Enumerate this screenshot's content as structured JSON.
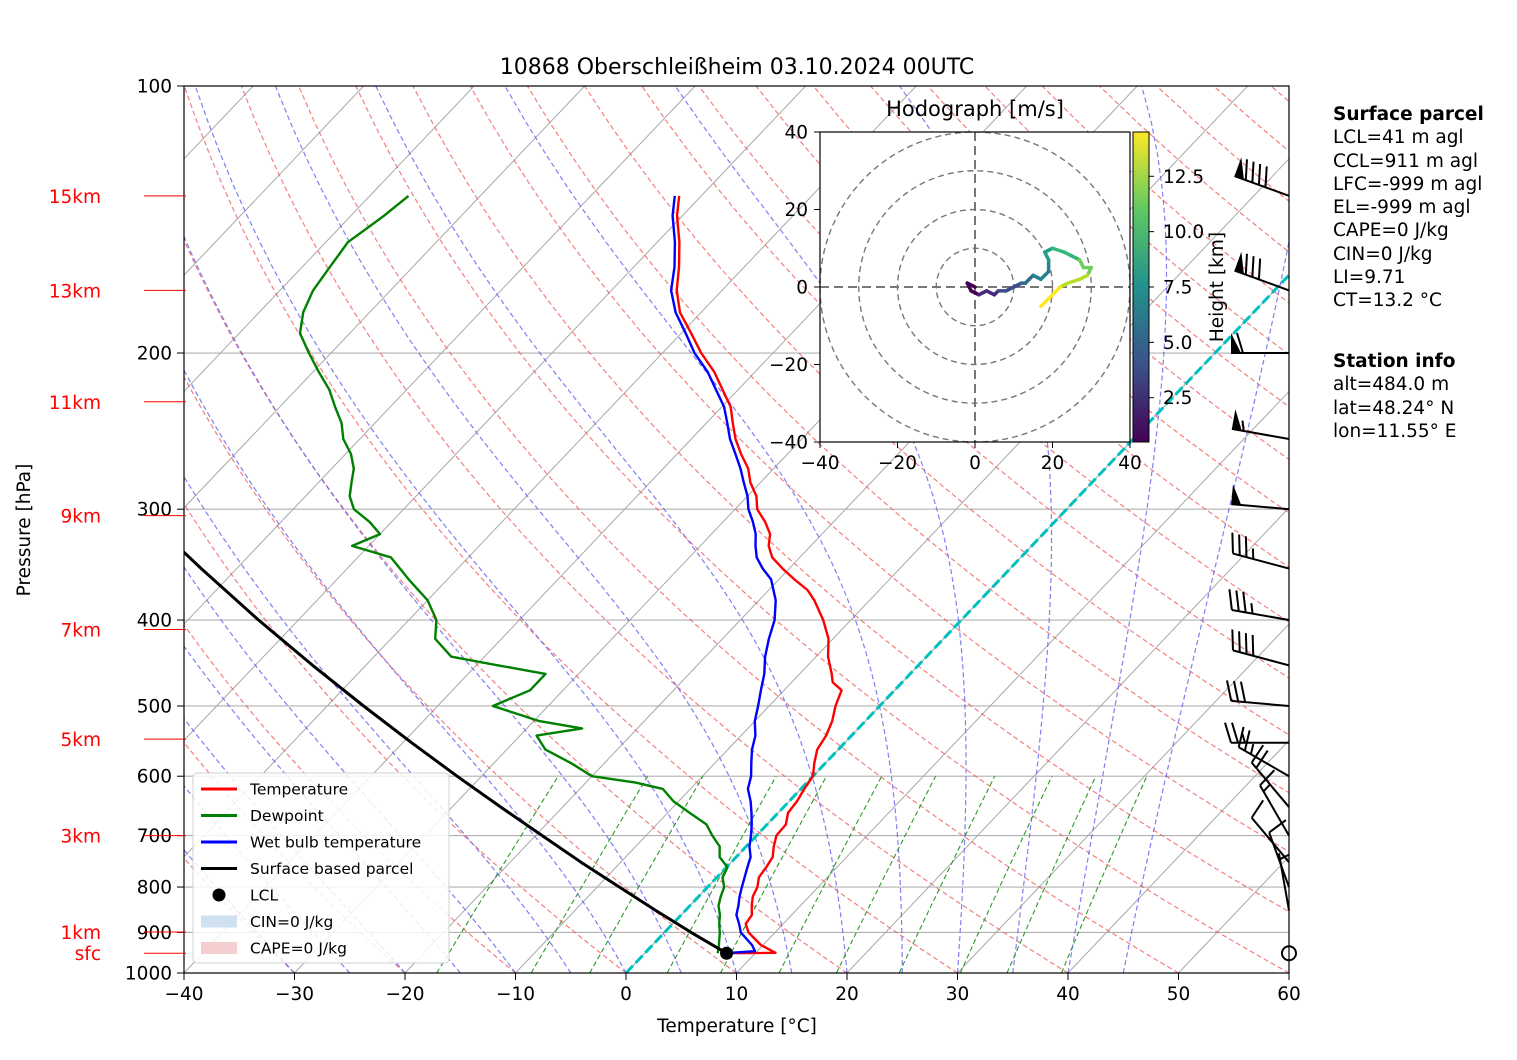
{
  "chart_data": {
    "type": "line",
    "chart_kind": "skew-T log-p sounding",
    "title": "10868 Oberschleißheim 03.10.2024 00UTC",
    "xlabel": "Temperature [°C]",
    "ylabel": "Pressure [hPa]",
    "xlim": [
      -40,
      60
    ],
    "ylim_hpa": [
      1000,
      100
    ],
    "y_scale": "log",
    "x_ticks": [
      -40,
      -30,
      -20,
      -10,
      0,
      10,
      20,
      30,
      40,
      50,
      60
    ],
    "y_ticks": [
      100,
      200,
      300,
      400,
      500,
      600,
      700,
      800,
      900,
      1000
    ],
    "grid": true,
    "legend_placement": "lower-left",
    "height_labels": [
      {
        "label": "15km",
        "p": 133
      },
      {
        "label": "13km",
        "p": 170
      },
      {
        "label": "11km",
        "p": 227
      },
      {
        "label": "9km",
        "p": 305
      },
      {
        "label": "7km",
        "p": 410
      },
      {
        "label": "5km",
        "p": 545
      },
      {
        "label": "3km",
        "p": 700
      },
      {
        "label": "1km",
        "p": 899
      },
      {
        "label": "sfc",
        "p": 950
      }
    ],
    "series": [
      {
        "name": "Temperature",
        "color": "#ff0000",
        "points": [
          [
            950,
            7.5
          ],
          [
            949,
            11.8
          ],
          [
            930,
            9.8
          ],
          [
            900,
            7.6
          ],
          [
            880,
            6.6
          ],
          [
            860,
            6.4
          ],
          [
            840,
            5.6
          ],
          [
            820,
            4.9
          ],
          [
            800,
            4.5
          ],
          [
            780,
            3.8
          ],
          [
            760,
            3.6
          ],
          [
            740,
            3.3
          ],
          [
            720,
            2.5
          ],
          [
            700,
            1.8
          ],
          [
            680,
            1.7
          ],
          [
            660,
            0.9
          ],
          [
            640,
            0.7
          ],
          [
            620,
            0.3
          ],
          [
            600,
            0.0
          ],
          [
            580,
            -1.0
          ],
          [
            560,
            -1.9
          ],
          [
            540,
            -2.3
          ],
          [
            520,
            -3.0
          ],
          [
            500,
            -4.0
          ],
          [
            480,
            -4.8
          ],
          [
            470,
            -6.3
          ],
          [
            460,
            -7.1
          ],
          [
            440,
            -8.9
          ],
          [
            420,
            -10.4
          ],
          [
            400,
            -12.5
          ],
          [
            380,
            -15.0
          ],
          [
            370,
            -16.5
          ],
          [
            360,
            -18.6
          ],
          [
            350,
            -20.6
          ],
          [
            340,
            -22.5
          ],
          [
            330,
            -23.8
          ],
          [
            320,
            -24.7
          ],
          [
            310,
            -26.2
          ],
          [
            300,
            -28.0
          ],
          [
            290,
            -29.2
          ],
          [
            280,
            -30.9
          ],
          [
            270,
            -32.3
          ],
          [
            260,
            -34.2
          ],
          [
            250,
            -36.0
          ],
          [
            240,
            -37.6
          ],
          [
            230,
            -39.2
          ],
          [
            220,
            -41.4
          ],
          [
            210,
            -43.7
          ],
          [
            200,
            -46.5
          ],
          [
            190,
            -49.1
          ],
          [
            180,
            -51.9
          ],
          [
            170,
            -54.1
          ],
          [
            160,
            -55.9
          ],
          [
            150,
            -58.0
          ],
          [
            140,
            -60.5
          ],
          [
            133,
            -62.0
          ]
        ]
      },
      {
        "name": "Dewpoint",
        "color": "#008000",
        "points": [
          [
            950,
            6.6
          ],
          [
            930,
            6.0
          ],
          [
            900,
            5.0
          ],
          [
            880,
            4.2
          ],
          [
            860,
            3.5
          ],
          [
            840,
            2.6
          ],
          [
            820,
            2.0
          ],
          [
            800,
            1.5
          ],
          [
            780,
            0.5
          ],
          [
            760,
            0.1
          ],
          [
            740,
            -1.5
          ],
          [
            720,
            -2.4
          ],
          [
            700,
            -4.0
          ],
          [
            680,
            -5.5
          ],
          [
            660,
            -8.0
          ],
          [
            640,
            -10.5
          ],
          [
            620,
            -12.5
          ],
          [
            610,
            -15.5
          ],
          [
            600,
            -20.0
          ],
          [
            580,
            -23.0
          ],
          [
            560,
            -26.5
          ],
          [
            540,
            -28.5
          ],
          [
            530,
            -25.0
          ],
          [
            520,
            -29.5
          ],
          [
            500,
            -35.0
          ],
          [
            480,
            -33.0
          ],
          [
            460,
            -33.0
          ],
          [
            450,
            -38.0
          ],
          [
            440,
            -43.0
          ],
          [
            420,
            -46.0
          ],
          [
            400,
            -47.5
          ],
          [
            380,
            -50.0
          ],
          [
            360,
            -53.5
          ],
          [
            340,
            -57.0
          ],
          [
            330,
            -61.5
          ],
          [
            320,
            -60.0
          ],
          [
            310,
            -62.0
          ],
          [
            300,
            -64.5
          ],
          [
            290,
            -66.0
          ],
          [
            280,
            -67.0
          ],
          [
            270,
            -68.0
          ],
          [
            260,
            -69.5
          ],
          [
            250,
            -71.5
          ],
          [
            240,
            -73.0
          ],
          [
            230,
            -75.0
          ],
          [
            220,
            -77.0
          ],
          [
            210,
            -79.5
          ],
          [
            200,
            -82.0
          ],
          [
            190,
            -84.5
          ],
          [
            180,
            -86.0
          ],
          [
            170,
            -87.0
          ],
          [
            160,
            -87.5
          ],
          [
            150,
            -88.0
          ],
          [
            140,
            -87.0
          ],
          [
            133,
            -86.5
          ]
        ]
      },
      {
        "name": "Wet bulb temperature",
        "color": "#0000ff",
        "points": [
          [
            950,
            7.2
          ],
          [
            945,
            9.8
          ],
          [
            930,
            9.0
          ],
          [
            900,
            6.9
          ],
          [
            880,
            6.0
          ],
          [
            860,
            5.0
          ],
          [
            840,
            4.4
          ],
          [
            820,
            3.7
          ],
          [
            800,
            3.1
          ],
          [
            780,
            2.5
          ],
          [
            760,
            1.9
          ],
          [
            740,
            1.3
          ],
          [
            720,
            0.3
          ],
          [
            700,
            -0.5
          ],
          [
            680,
            -1.4
          ],
          [
            660,
            -2.4
          ],
          [
            640,
            -3.5
          ],
          [
            620,
            -4.8
          ],
          [
            600,
            -5.6
          ],
          [
            580,
            -6.7
          ],
          [
            560,
            -7.8
          ],
          [
            540,
            -8.7
          ],
          [
            520,
            -10.0
          ],
          [
            500,
            -11.0
          ],
          [
            480,
            -12.1
          ],
          [
            460,
            -13.2
          ],
          [
            440,
            -14.6
          ],
          [
            420,
            -15.8
          ],
          [
            400,
            -16.9
          ],
          [
            380,
            -18.5
          ],
          [
            360,
            -20.7
          ],
          [
            350,
            -22.4
          ],
          [
            340,
            -23.9
          ],
          [
            330,
            -25.0
          ],
          [
            320,
            -26.0
          ],
          [
            310,
            -27.3
          ],
          [
            300,
            -28.8
          ],
          [
            290,
            -30.0
          ],
          [
            280,
            -31.5
          ],
          [
            270,
            -33.0
          ],
          [
            260,
            -34.7
          ],
          [
            250,
            -36.5
          ],
          [
            240,
            -38.1
          ],
          [
            230,
            -39.8
          ],
          [
            220,
            -42.0
          ],
          [
            210,
            -44.3
          ],
          [
            200,
            -47.1
          ],
          [
            190,
            -49.6
          ],
          [
            180,
            -52.3
          ],
          [
            170,
            -54.6
          ],
          [
            160,
            -56.3
          ],
          [
            150,
            -58.4
          ],
          [
            140,
            -60.9
          ],
          [
            133,
            -62.4
          ]
        ]
      },
      {
        "name": "Surface based parcel",
        "color": "#000000",
        "points": [
          [
            950,
            7.4
          ],
          [
            900,
            2.4
          ],
          [
            850,
            -2.7
          ],
          [
            800,
            -8.0
          ],
          [
            750,
            -13.6
          ],
          [
            700,
            -19.4
          ],
          [
            650,
            -25.6
          ],
          [
            600,
            -32.2
          ],
          [
            550,
            -39.2
          ],
          [
            500,
            -46.7
          ],
          [
            450,
            -54.8
          ],
          [
            400,
            -63.6
          ],
          [
            350,
            -73.2
          ],
          [
            300,
            -84.0
          ],
          [
            250,
            -96.3
          ],
          [
            200,
            -110.7
          ],
          [
            180,
            -117.4
          ]
        ]
      }
    ],
    "lcl": {
      "p": 950,
      "t": 7.4,
      "label": "LCL"
    },
    "legend": [
      "Temperature",
      "Dewpoint",
      "Wet bulb temperature",
      "Surface based parcel",
      "LCL",
      "CIN=0 J/kg",
      "CAPE=0 J/kg"
    ],
    "legend_colors": {
      "cin": "#cfe0f0",
      "cape": "#f5cfcf"
    },
    "hodograph": {
      "title": "Hodograph [m/s]",
      "xlim": [
        -40,
        40
      ],
      "ylim": [
        -40,
        40
      ],
      "ticks": [
        -40,
        -20,
        0,
        20,
        40
      ],
      "colorbar_label": "Height [km]",
      "colorbar_ticks": [
        "2.5",
        "5.0",
        "7.5",
        "10.0",
        "12.5"
      ],
      "colorbar_range_km": [
        0.5,
        14.5
      ],
      "path": [
        [
          0,
          0,
          0.5
        ],
        [
          -2,
          1,
          0.8
        ],
        [
          -1,
          -1,
          1.0
        ],
        [
          1,
          -2,
          1.5
        ],
        [
          3,
          -1,
          2.0
        ],
        [
          5,
          -2,
          2.5
        ],
        [
          6,
          -1,
          3.0
        ],
        [
          8,
          -1,
          3.5
        ],
        [
          10,
          0,
          4.0
        ],
        [
          12,
          1,
          4.5
        ],
        [
          13,
          1,
          5.0
        ],
        [
          14,
          2,
          5.5
        ],
        [
          15,
          3,
          6.0
        ],
        [
          17,
          2,
          6.5
        ],
        [
          19,
          4,
          7.0
        ],
        [
          19,
          7,
          7.5
        ],
        [
          18,
          9,
          8.0
        ],
        [
          20,
          10,
          8.5
        ],
        [
          23,
          9,
          9.0
        ],
        [
          25,
          8,
          9.5
        ],
        [
          27,
          7,
          10.0
        ],
        [
          28,
          5,
          10.5
        ],
        [
          30,
          5,
          11.0
        ],
        [
          29,
          3,
          11.5
        ],
        [
          27,
          2,
          12.0
        ],
        [
          24,
          1,
          12.5
        ],
        [
          22,
          0,
          13.0
        ],
        [
          20,
          -2,
          13.5
        ],
        [
          18,
          -4,
          14.0
        ],
        [
          17,
          -5,
          14.5
        ]
      ]
    },
    "wind_barbs": [
      {
        "p": 133,
        "speed_kt": 90,
        "dir_deg": 290
      },
      {
        "p": 170,
        "speed_kt": 80,
        "dir_deg": 290
      },
      {
        "p": 200,
        "speed_kt": 60,
        "dir_deg": 270
      },
      {
        "p": 250,
        "speed_kt": 55,
        "dir_deg": 280
      },
      {
        "p": 300,
        "speed_kt": 50,
        "dir_deg": 275
      },
      {
        "p": 350,
        "speed_kt": 35,
        "dir_deg": 285
      },
      {
        "p": 400,
        "speed_kt": 35,
        "dir_deg": 280
      },
      {
        "p": 450,
        "speed_kt": 40,
        "dir_deg": 285
      },
      {
        "p": 500,
        "speed_kt": 30,
        "dir_deg": 275
      },
      {
        "p": 550,
        "speed_kt": 25,
        "dir_deg": 270
      },
      {
        "p": 600,
        "speed_kt": 25,
        "dir_deg": 300
      },
      {
        "p": 650,
        "speed_kt": 20,
        "dir_deg": 320
      },
      {
        "p": 700,
        "speed_kt": 15,
        "dir_deg": 330
      },
      {
        "p": 750,
        "speed_kt": 12,
        "dir_deg": 320
      },
      {
        "p": 800,
        "speed_kt": 10,
        "dir_deg": 340
      },
      {
        "p": 850,
        "speed_kt": 5,
        "dir_deg": 350
      },
      {
        "p": 950,
        "speed_kt": 0,
        "dir_deg": 0
      }
    ]
  },
  "info": {
    "surface_parcel_title": "Surface parcel",
    "surface_parcel_lines": [
      "LCL=41 m agl",
      "CCL=911 m agl",
      "LFC=-999 m agl",
      "EL=-999 m agl",
      "CAPE=0 J/kg",
      "CIN=0 J/kg",
      "LI=9.71",
      "CT=13.2 °C"
    ],
    "station_title": "Station info",
    "station_lines": [
      "alt=484.0 m",
      "lat=48.24° N",
      "lon=11.55° E"
    ]
  }
}
